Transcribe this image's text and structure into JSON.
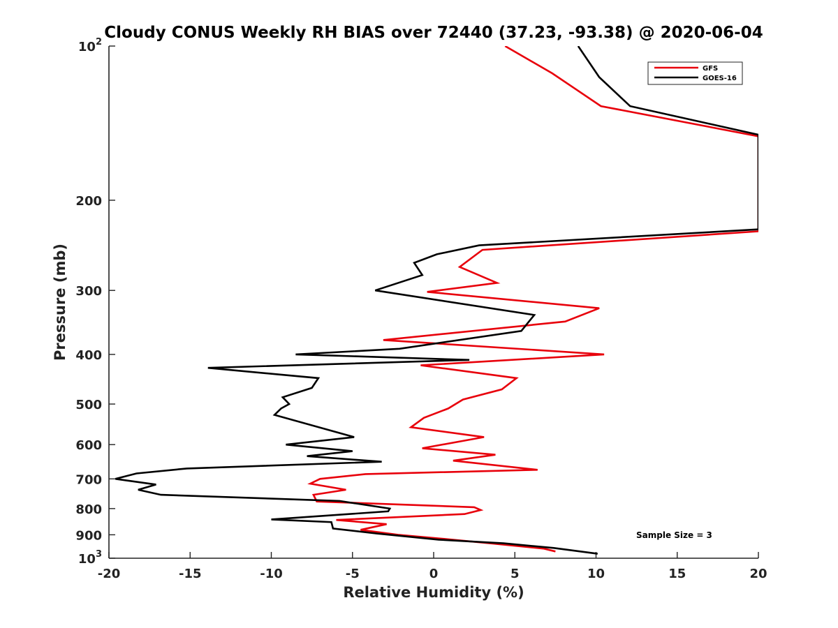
{
  "chart_data": {
    "type": "line",
    "title": "Cloudy CONUS Weekly RH BIAS over 72440 (37.23, -93.38) @ 2020-06-04",
    "xlabel": "Relative Humidity (%)",
    "ylabel": "Pressure (mb)",
    "xlim": [
      -20,
      20
    ],
    "ylim": [
      100,
      1000
    ],
    "y_scale": "log",
    "y_reversed": true,
    "x_ticks": [
      -20,
      -15,
      -10,
      -5,
      0,
      5,
      10,
      15,
      20
    ],
    "x_tick_labels": [
      "-20",
      "-15",
      "-10",
      "-5",
      "0",
      "5",
      "10",
      "15",
      "20"
    ],
    "y_ticks": [
      100,
      200,
      300,
      400,
      500,
      600,
      700,
      800,
      900,
      1000
    ],
    "y_tick_labels": [
      {
        "base": "10",
        "sup": "2"
      },
      {
        "base": "200",
        "sup": ""
      },
      {
        "base": "300",
        "sup": ""
      },
      {
        "base": "400",
        "sup": ""
      },
      {
        "base": "500",
        "sup": ""
      },
      {
        "base": "600",
        "sup": ""
      },
      {
        "base": "700",
        "sup": ""
      },
      {
        "base": "800",
        "sup": ""
      },
      {
        "base": "900",
        "sup": ""
      },
      {
        "base": "10",
        "sup": "3"
      }
    ],
    "grid": false,
    "legend_position": "top-right",
    "annotation": "Sample Size = 3",
    "series": [
      {
        "name": "GFS",
        "color": "#e8000b",
        "points": [
          {
            "x": 4.4,
            "p": 100
          },
          {
            "x": 7.3,
            "p": 113
          },
          {
            "x": 10.3,
            "p": 131
          },
          {
            "x": 20,
            "p": 150
          },
          {
            "x": 20,
            "p": 230
          },
          {
            "x": 3.0,
            "p": 250
          },
          {
            "x": 1.6,
            "p": 270
          },
          {
            "x": 3.9,
            "p": 290
          },
          {
            "x": -0.4,
            "p": 302
          },
          {
            "x": 10.2,
            "p": 325
          },
          {
            "x": 8.1,
            "p": 345
          },
          {
            "x": -3.1,
            "p": 375
          },
          {
            "x": 10.5,
            "p": 400
          },
          {
            "x": -0.8,
            "p": 420
          },
          {
            "x": 5.1,
            "p": 445
          },
          {
            "x": 4.2,
            "p": 468
          },
          {
            "x": 1.8,
            "p": 490
          },
          {
            "x": 0.9,
            "p": 510
          },
          {
            "x": -0.6,
            "p": 532
          },
          {
            "x": -1.4,
            "p": 555
          },
          {
            "x": 3.1,
            "p": 580
          },
          {
            "x": -0.7,
            "p": 610
          },
          {
            "x": 3.8,
            "p": 628
          },
          {
            "x": 1.2,
            "p": 645
          },
          {
            "x": 6.4,
            "p": 672
          },
          {
            "x": -4.2,
            "p": 685
          },
          {
            "x": -7.0,
            "p": 700
          },
          {
            "x": -7.6,
            "p": 715
          },
          {
            "x": -5.4,
            "p": 735
          },
          {
            "x": -7.4,
            "p": 752
          },
          {
            "x": -7.2,
            "p": 775
          },
          {
            "x": 2.5,
            "p": 795
          },
          {
            "x": 2.9,
            "p": 805
          },
          {
            "x": 1.9,
            "p": 820
          },
          {
            "x": -6.0,
            "p": 842
          },
          {
            "x": -2.9,
            "p": 858
          },
          {
            "x": -4.5,
            "p": 880
          },
          {
            "x": -2.2,
            "p": 900
          },
          {
            "x": 0.7,
            "p": 917
          },
          {
            "x": 3.9,
            "p": 938
          },
          {
            "x": 6.8,
            "p": 958
          },
          {
            "x": 7.5,
            "p": 970
          }
        ]
      },
      {
        "name": "GOES-16",
        "color": "#000000",
        "points": [
          {
            "x": 8.9,
            "p": 100
          },
          {
            "x": 10.2,
            "p": 115
          },
          {
            "x": 12.1,
            "p": 131
          },
          {
            "x": 20,
            "p": 149
          },
          {
            "x": 20,
            "p": 228
          },
          {
            "x": 2.8,
            "p": 245
          },
          {
            "x": 0.2,
            "p": 255
          },
          {
            "x": -1.2,
            "p": 265
          },
          {
            "x": -0.7,
            "p": 280
          },
          {
            "x": -3.6,
            "p": 300
          },
          {
            "x": 6.2,
            "p": 335
          },
          {
            "x": 5.4,
            "p": 360
          },
          {
            "x": -2.1,
            "p": 390
          },
          {
            "x": -8.5,
            "p": 400
          },
          {
            "x": 2.2,
            "p": 410
          },
          {
            "x": -13.9,
            "p": 425
          },
          {
            "x": -7.1,
            "p": 445
          },
          {
            "x": -7.5,
            "p": 465
          },
          {
            "x": -9.3,
            "p": 485
          },
          {
            "x": -8.9,
            "p": 500
          },
          {
            "x": -9.4,
            "p": 510
          },
          {
            "x": -9.8,
            "p": 525
          },
          {
            "x": -4.9,
            "p": 580
          },
          {
            "x": -9.1,
            "p": 600
          },
          {
            "x": -5.0,
            "p": 618
          },
          {
            "x": -7.8,
            "p": 632
          },
          {
            "x": -3.2,
            "p": 648
          },
          {
            "x": -15.2,
            "p": 668
          },
          {
            "x": -18.3,
            "p": 683
          },
          {
            "x": -19.6,
            "p": 700
          },
          {
            "x": -17.1,
            "p": 718
          },
          {
            "x": -18.2,
            "p": 735
          },
          {
            "x": -16.8,
            "p": 752
          },
          {
            "x": -5.8,
            "p": 773
          },
          {
            "x": -2.7,
            "p": 800
          },
          {
            "x": -2.8,
            "p": 810
          },
          {
            "x": -10.0,
            "p": 840
          },
          {
            "x": -6.3,
            "p": 850
          },
          {
            "x": -6.2,
            "p": 875
          },
          {
            "x": -3.5,
            "p": 895
          },
          {
            "x": 0.3,
            "p": 920
          },
          {
            "x": 4.3,
            "p": 935
          },
          {
            "x": 7.4,
            "p": 955
          },
          {
            "x": 10.1,
            "p": 980
          }
        ]
      }
    ]
  }
}
